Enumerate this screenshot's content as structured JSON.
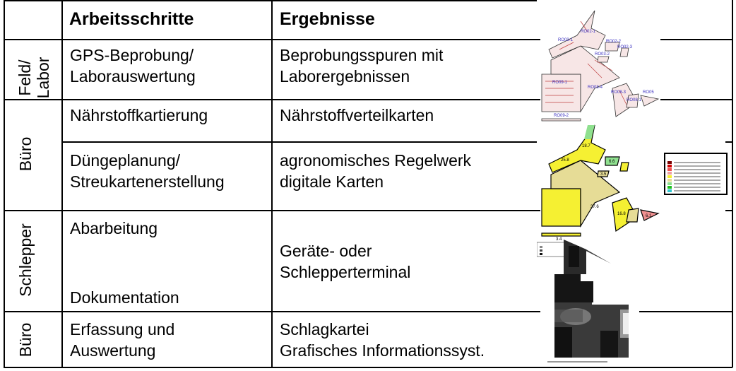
{
  "header": {
    "col_steps": "Arbeitsschritte",
    "col_results": "Ergebnisse"
  },
  "rows": [
    {
      "phase": [
        "Feld/",
        "Labor"
      ],
      "steps": [
        "GPS-Beprobung/",
        "Laborauswertung"
      ],
      "results": [
        "Beprobungsspuren mit",
        "Laborergebnissen"
      ]
    },
    {
      "phase": [
        "Büro"
      ],
      "steps": [
        "Nährstoffkartierung"
      ],
      "results": [
        "Nährstoffverteilkarten"
      ]
    },
    {
      "steps": [
        "Düngeplanung/",
        "Streukartenerstellung"
      ],
      "results": [
        "agronomisches Regelwerk",
        "digitale Karten"
      ]
    },
    {
      "phase": [
        "Schlepper"
      ],
      "steps": [
        "Abarbeitung",
        "Dokumentation"
      ],
      "results": [
        "Geräte- oder",
        "Schlepperterminal"
      ]
    },
    {
      "phase": [
        "Büro"
      ],
      "steps": [
        "Erfassung und",
        "Auswertung"
      ],
      "results": [
        "Schlagkartei",
        "Grafisches Informationssyst."
      ]
    }
  ],
  "map_labels": [
    "RO02-1",
    "RO03-1",
    "RO02-2",
    "RO02-3",
    "RO03-2",
    "RO09-1",
    "RO08-4",
    "RO08-3",
    "RO08-1",
    "RO05",
    "RO09-2"
  ],
  "map_values": [
    "18.7",
    "25.8",
    "6.6",
    "3.5",
    "37.6",
    "16.8",
    "6.1",
    "3.4"
  ],
  "colors": {
    "sample_fill": "#f7e6e6",
    "sample_track": "#c04040",
    "label": "#3a2fc0",
    "yellow": "#f5f032",
    "khaki": "#e6dc96",
    "green": "#8fe08f",
    "pink": "#f09090"
  }
}
